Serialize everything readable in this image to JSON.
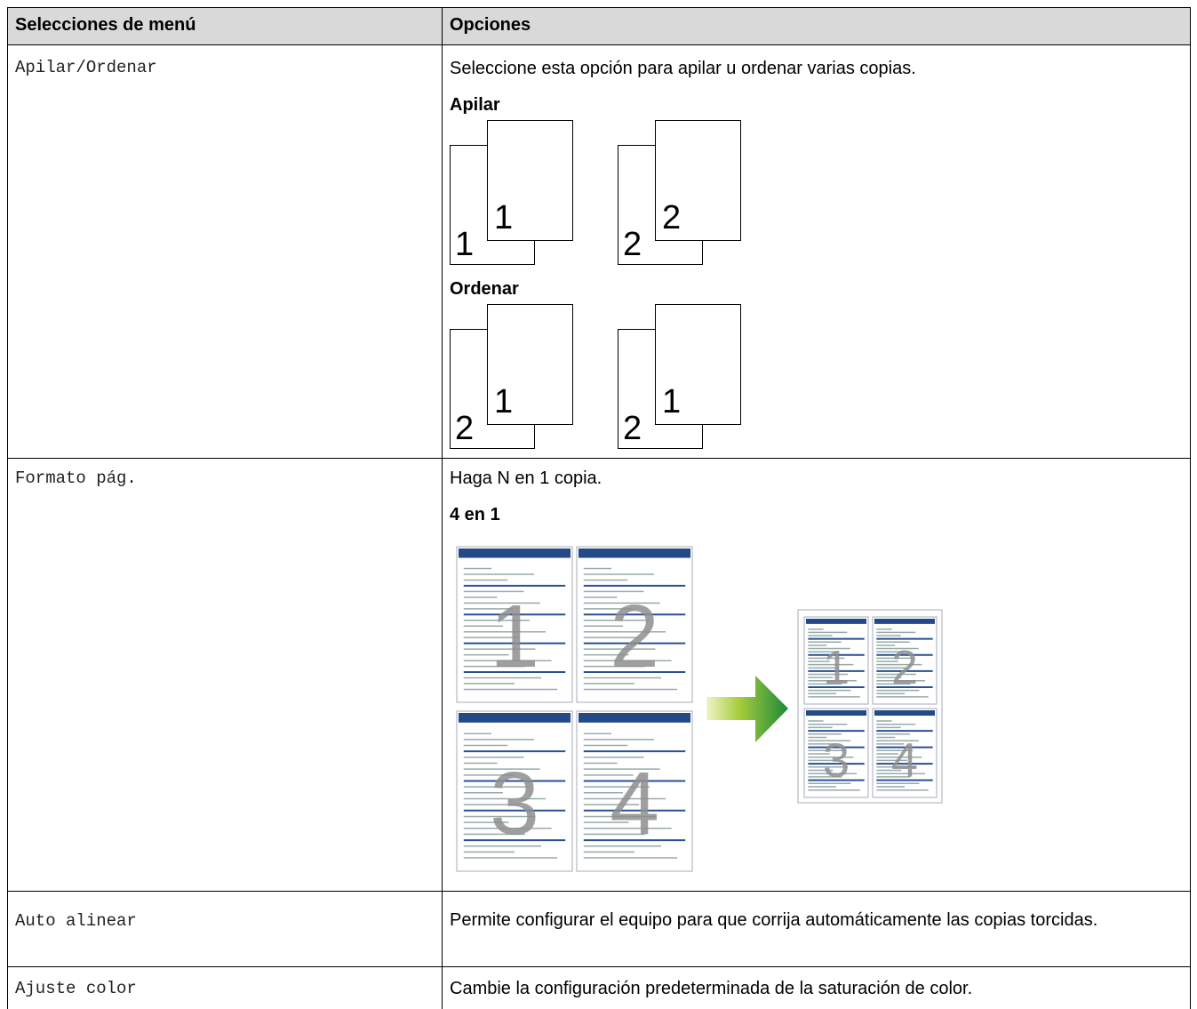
{
  "table": {
    "header": [
      "Selecciones de menú",
      "Opciones"
    ],
    "rows": [
      {
        "menu": "Apilar/Ordenar",
        "description": "Seleccione esta opción para apilar u ordenar varias copias.",
        "sections": [
          {
            "heading": "Apilar",
            "stacks": [
              [
                "1",
                "1"
              ],
              [
                "2",
                "2"
              ]
            ]
          },
          {
            "heading": "Ordenar",
            "stacks": [
              [
                "2",
                "1"
              ],
              [
                "2",
                "1"
              ]
            ]
          }
        ]
      },
      {
        "menu": "Formato pág.",
        "description": "Haga N en 1 copia.",
        "heading": "4 en 1",
        "pages": [
          "1",
          "2",
          "3",
          "4"
        ]
      },
      {
        "menu": "Auto alinear",
        "description": "Permite configurar el equipo para que corrija automáticamente las copias torcidas."
      },
      {
        "menu": "Ajuste color",
        "description": "Cambie la configuración predeterminada de la saturación de color."
      }
    ]
  }
}
